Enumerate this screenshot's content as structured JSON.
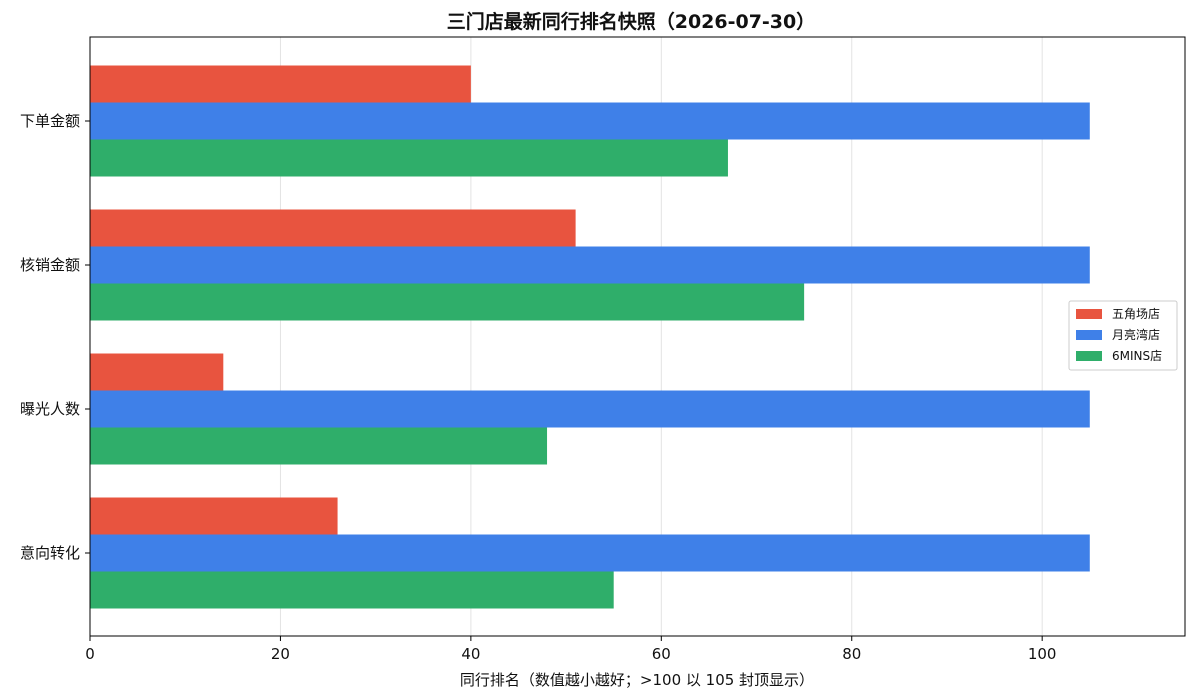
{
  "chart_data": {
    "type": "bar",
    "orientation": "horizontal",
    "title": "三门店最新同行排名快照（2026-07-30）",
    "xlabel": "同行排名（数值越小越好；>100 以 105 封顶显示）",
    "ylabel": "",
    "xlim": [
      0,
      115
    ],
    "xticks": [
      0,
      20,
      40,
      60,
      80,
      100
    ],
    "categories": [
      "下单金额",
      "核销金额",
      "曝光人数",
      "意向转化"
    ],
    "series": [
      {
        "name": "五角场店",
        "color": "#E8543F",
        "values": [
          40,
          51,
          14,
          26
        ]
      },
      {
        "name": "月亮湾店",
        "color": "#3F80E8",
        "values": [
          105,
          105,
          105,
          105
        ]
      },
      {
        "name": "6MINS店",
        "color": "#2FAE6A",
        "values": [
          67,
          75,
          48,
          55
        ]
      }
    ],
    "grid": "x",
    "legend": "center-right"
  }
}
